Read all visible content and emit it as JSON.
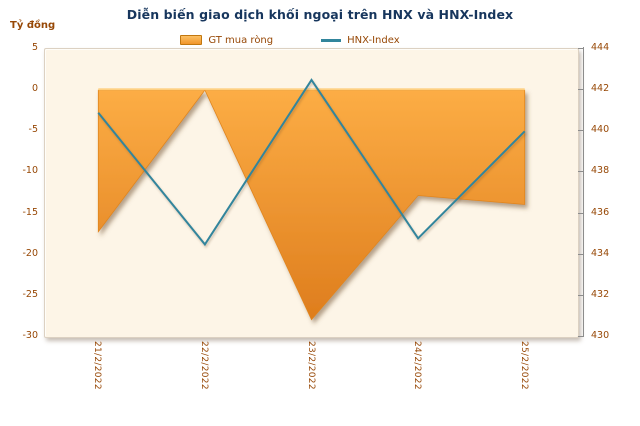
{
  "title": "Diễn biến giao dịch khối ngoại trên HNX và HNX-Index",
  "unit_label": "Tỷ đồng",
  "colors": {
    "title_navy": "#17365D",
    "text_brown": "#974806",
    "plot_bg": "#FDF5E7",
    "axis_gray": "#8C8C8C",
    "area_top": "#FCAD45",
    "area_bottom": "#DE7D1D",
    "area_edge": "#E0851F",
    "area_highlight": "#FFCF7E",
    "line_teal": "#31859C"
  },
  "chart_data": {
    "type": "area",
    "title": "Diễn biến giao dịch khối ngoại trên HNX và HNX-Index",
    "categories": [
      "21/2/2022",
      "22/2/2022",
      "23/2/2022",
      "24/2/2022",
      "25/2/2022"
    ],
    "series": [
      {
        "name": "GT mua ròng",
        "type": "area",
        "axis": "left",
        "values": [
          -17.2,
          0,
          -27.9,
          -12.8,
          -13.9
        ]
      },
      {
        "name": "HNX-Index",
        "type": "line",
        "axis": "right",
        "values": [
          440.9,
          434.5,
          442.5,
          434.8,
          440.0
        ]
      }
    ],
    "left_axis": {
      "label": "Tỷ đồng",
      "ticks": [
        5,
        0,
        -5,
        -10,
        -15,
        -20,
        -25,
        -30
      ],
      "range": [
        5,
        -30
      ]
    },
    "right_axis": {
      "ticks": [
        444,
        442,
        440,
        438,
        436,
        434,
        432,
        430
      ],
      "range": [
        444,
        430
      ]
    },
    "grid": false,
    "legend_position": "top"
  }
}
